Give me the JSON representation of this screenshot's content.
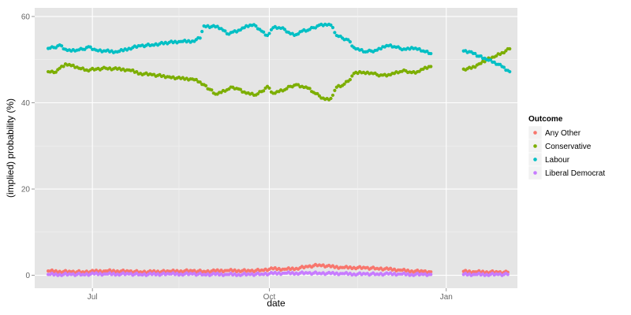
{
  "chart_data": {
    "type": "scatter",
    "xlabel": "date",
    "ylabel": "(implied) probability (%)",
    "x_ticks": [
      "Jul",
      "Oct",
      "Jan"
    ],
    "y_ticks": [
      0,
      20,
      40,
      60
    ],
    "ylim": [
      -3,
      62
    ],
    "x_range": [
      "2014-06-01",
      "2015-02-07"
    ],
    "grid": true,
    "legend_position": "right",
    "legend_title": "Outcome",
    "series": [
      {
        "name": "Any Other",
        "color": "#F8766D",
        "points": [
          [
            "2014-06-08",
            1.0
          ],
          [
            "2014-06-14",
            0.9
          ],
          [
            "2014-06-20",
            0.8
          ],
          [
            "2014-06-26",
            0.8
          ],
          [
            "2014-07-02",
            0.9
          ],
          [
            "2014-07-08",
            1.0
          ],
          [
            "2014-07-14",
            1.0
          ],
          [
            "2014-07-20",
            0.9
          ],
          [
            "2014-07-26",
            0.8
          ],
          [
            "2014-08-01",
            0.8
          ],
          [
            "2014-08-10",
            0.9
          ],
          [
            "2014-08-16",
            1.0
          ],
          [
            "2014-08-22",
            1.0
          ],
          [
            "2014-08-28",
            0.9
          ],
          [
            "2014-09-03",
            1.0
          ],
          [
            "2014-09-09",
            1.1
          ],
          [
            "2014-09-15",
            1.1
          ],
          [
            "2014-09-21",
            1.0
          ],
          [
            "2014-09-27",
            1.2
          ],
          [
            "2014-10-03",
            1.5
          ],
          [
            "2014-10-09",
            1.4
          ],
          [
            "2014-10-15",
            1.6
          ],
          [
            "2014-10-21",
            2.0
          ],
          [
            "2014-10-27",
            2.4
          ],
          [
            "2014-11-02",
            2.0
          ],
          [
            "2014-11-08",
            1.8
          ],
          [
            "2014-11-14",
            1.8
          ],
          [
            "2014-11-20",
            1.7
          ],
          [
            "2014-11-26",
            1.6
          ],
          [
            "2014-12-02",
            1.4
          ],
          [
            "2014-12-08",
            1.2
          ],
          [
            "2014-12-14",
            1.0
          ],
          [
            "2014-12-20",
            0.9
          ],
          [
            "2014-12-24",
            0.8
          ],
          [
            "2015-01-10",
            0.9
          ],
          [
            "2015-01-16",
            0.8
          ],
          [
            "2015-01-22",
            0.8
          ],
          [
            "2015-01-28",
            0.7
          ],
          [
            "2015-02-02",
            0.7
          ]
        ]
      },
      {
        "name": "Conservative",
        "color": "#7CAE00",
        "points": [
          [
            "2014-06-08",
            47.2
          ],
          [
            "2014-06-11",
            47.0
          ],
          [
            "2014-06-14",
            48.0
          ],
          [
            "2014-06-17",
            49.0
          ],
          [
            "2014-06-20",
            48.6
          ],
          [
            "2014-06-24",
            48.0
          ],
          [
            "2014-06-28",
            47.6
          ],
          [
            "2014-07-03",
            47.8
          ],
          [
            "2014-07-08",
            48.0
          ],
          [
            "2014-07-14",
            47.8
          ],
          [
            "2014-07-20",
            47.6
          ],
          [
            "2014-07-26",
            46.8
          ],
          [
            "2014-08-01",
            46.5
          ],
          [
            "2014-08-10",
            46.0
          ],
          [
            "2014-08-16",
            45.6
          ],
          [
            "2014-08-22",
            45.5
          ],
          [
            "2014-08-26",
            44.8
          ],
          [
            "2014-08-28",
            44.2
          ],
          [
            "2014-09-03",
            42.0
          ],
          [
            "2014-09-06",
            42.4
          ],
          [
            "2014-09-09",
            43.0
          ],
          [
            "2014-09-12",
            43.6
          ],
          [
            "2014-09-15",
            43.2
          ],
          [
            "2014-09-18",
            42.5
          ],
          [
            "2014-09-21",
            42.0
          ],
          [
            "2014-09-24",
            41.8
          ],
          [
            "2014-09-27",
            42.6
          ],
          [
            "2014-09-30",
            43.8
          ],
          [
            "2014-10-03",
            42.2
          ],
          [
            "2014-10-06",
            42.6
          ],
          [
            "2014-10-09",
            43.0
          ],
          [
            "2014-10-12",
            43.8
          ],
          [
            "2014-10-15",
            44.2
          ],
          [
            "2014-10-18",
            43.8
          ],
          [
            "2014-10-21",
            43.4
          ],
          [
            "2014-10-24",
            42.4
          ],
          [
            "2014-10-27",
            41.6
          ],
          [
            "2014-10-30",
            40.8
          ],
          [
            "2014-11-02",
            41.0
          ],
          [
            "2014-11-05",
            43.6
          ],
          [
            "2014-11-08",
            44.0
          ],
          [
            "2014-11-11",
            45.0
          ],
          [
            "2014-11-14",
            46.8
          ],
          [
            "2014-11-17",
            47.2
          ],
          [
            "2014-11-20",
            46.8
          ],
          [
            "2014-11-23",
            46.9
          ],
          [
            "2014-11-26",
            46.5
          ],
          [
            "2014-11-29",
            46.4
          ],
          [
            "2014-12-02",
            46.5
          ],
          [
            "2014-12-05",
            46.8
          ],
          [
            "2014-12-08",
            47.2
          ],
          [
            "2014-12-11",
            47.4
          ],
          [
            "2014-12-14",
            47.0
          ],
          [
            "2014-12-17",
            47.2
          ],
          [
            "2014-12-20",
            47.8
          ],
          [
            "2014-12-24",
            48.4
          ],
          [
            "2015-01-10",
            47.8
          ],
          [
            "2015-01-14",
            48.0
          ],
          [
            "2015-01-18",
            49.0
          ],
          [
            "2015-01-22",
            50.0
          ],
          [
            "2015-01-26",
            50.6
          ],
          [
            "2015-01-30",
            51.6
          ],
          [
            "2015-02-03",
            52.5
          ]
        ]
      },
      {
        "name": "Labour",
        "color": "#00BFC4",
        "points": [
          [
            "2014-06-08",
            52.6
          ],
          [
            "2014-06-11",
            52.8
          ],
          [
            "2014-06-14",
            53.4
          ],
          [
            "2014-06-17",
            52.4
          ],
          [
            "2014-06-20",
            52.0
          ],
          [
            "2014-06-23",
            52.2
          ],
          [
            "2014-06-26",
            52.4
          ],
          [
            "2014-06-29",
            53.0
          ],
          [
            "2014-07-03",
            52.2
          ],
          [
            "2014-07-08",
            52.0
          ],
          [
            "2014-07-14",
            51.8
          ],
          [
            "2014-07-20",
            52.6
          ],
          [
            "2014-07-26",
            53.2
          ],
          [
            "2014-08-01",
            53.4
          ],
          [
            "2014-08-10",
            54.0
          ],
          [
            "2014-08-16",
            54.2
          ],
          [
            "2014-08-22",
            54.3
          ],
          [
            "2014-08-26",
            55.0
          ],
          [
            "2014-08-28",
            57.8
          ],
          [
            "2014-09-03",
            57.6
          ],
          [
            "2014-09-06",
            57.2
          ],
          [
            "2014-09-09",
            56.0
          ],
          [
            "2014-09-12",
            56.4
          ],
          [
            "2014-09-15",
            56.8
          ],
          [
            "2014-09-18",
            57.4
          ],
          [
            "2014-09-21",
            58.0
          ],
          [
            "2014-09-24",
            57.8
          ],
          [
            "2014-09-27",
            56.6
          ],
          [
            "2014-09-30",
            55.6
          ],
          [
            "2014-10-03",
            57.4
          ],
          [
            "2014-10-06",
            57.4
          ],
          [
            "2014-10-09",
            57.0
          ],
          [
            "2014-10-12",
            56.0
          ],
          [
            "2014-10-15",
            55.8
          ],
          [
            "2014-10-18",
            56.6
          ],
          [
            "2014-10-21",
            56.8
          ],
          [
            "2014-10-24",
            57.4
          ],
          [
            "2014-10-27",
            58.0
          ],
          [
            "2014-10-30",
            58.2
          ],
          [
            "2014-11-02",
            58.0
          ],
          [
            "2014-11-05",
            55.6
          ],
          [
            "2014-11-08",
            55.0
          ],
          [
            "2014-11-11",
            54.6
          ],
          [
            "2014-11-14",
            52.8
          ],
          [
            "2014-11-17",
            52.2
          ],
          [
            "2014-11-20",
            51.8
          ],
          [
            "2014-11-23",
            52.0
          ],
          [
            "2014-11-26",
            52.2
          ],
          [
            "2014-11-29",
            53.0
          ],
          [
            "2014-12-02",
            53.2
          ],
          [
            "2014-12-05",
            53.0
          ],
          [
            "2014-12-08",
            52.6
          ],
          [
            "2014-12-11",
            52.4
          ],
          [
            "2014-12-14",
            52.8
          ],
          [
            "2014-12-17",
            52.4
          ],
          [
            "2014-12-20",
            52.0
          ],
          [
            "2014-12-24",
            51.4
          ],
          [
            "2015-01-10",
            52.0
          ],
          [
            "2015-01-14",
            51.8
          ],
          [
            "2015-01-18",
            50.8
          ],
          [
            "2015-01-22",
            50.0
          ],
          [
            "2015-01-26",
            49.4
          ],
          [
            "2015-01-30",
            48.4
          ],
          [
            "2015-02-03",
            47.2
          ]
        ]
      },
      {
        "name": "Liberal Democrat",
        "color": "#C77CFF",
        "points": [
          [
            "2014-06-08",
            0.2
          ],
          [
            "2014-06-14",
            0.2
          ],
          [
            "2014-06-20",
            0.2
          ],
          [
            "2014-06-26",
            0.2
          ],
          [
            "2014-07-02",
            0.3
          ],
          [
            "2014-07-08",
            0.3
          ],
          [
            "2014-07-14",
            0.3
          ],
          [
            "2014-07-20",
            0.3
          ],
          [
            "2014-07-26",
            0.2
          ],
          [
            "2014-08-01",
            0.2
          ],
          [
            "2014-08-10",
            0.3
          ],
          [
            "2014-08-16",
            0.3
          ],
          [
            "2014-08-22",
            0.3
          ],
          [
            "2014-08-28",
            0.2
          ],
          [
            "2014-09-03",
            0.2
          ],
          [
            "2014-09-09",
            0.2
          ],
          [
            "2014-09-15",
            0.2
          ],
          [
            "2014-09-21",
            0.2
          ],
          [
            "2014-09-27",
            0.3
          ],
          [
            "2014-10-03",
            0.4
          ],
          [
            "2014-10-09",
            0.5
          ],
          [
            "2014-10-15",
            0.5
          ],
          [
            "2014-10-21",
            0.5
          ],
          [
            "2014-10-27",
            0.5
          ],
          [
            "2014-11-02",
            0.4
          ],
          [
            "2014-11-08",
            0.4
          ],
          [
            "2014-11-14",
            0.3
          ],
          [
            "2014-11-20",
            0.3
          ],
          [
            "2014-11-26",
            0.3
          ],
          [
            "2014-12-02",
            0.3
          ],
          [
            "2014-12-08",
            0.3
          ],
          [
            "2014-12-14",
            0.2
          ],
          [
            "2014-12-20",
            0.2
          ],
          [
            "2014-12-24",
            0.2
          ],
          [
            "2015-01-10",
            0.2
          ],
          [
            "2015-01-16",
            0.2
          ],
          [
            "2015-01-22",
            0.2
          ],
          [
            "2015-01-28",
            0.2
          ],
          [
            "2015-02-02",
            0.2
          ]
        ]
      }
    ]
  }
}
